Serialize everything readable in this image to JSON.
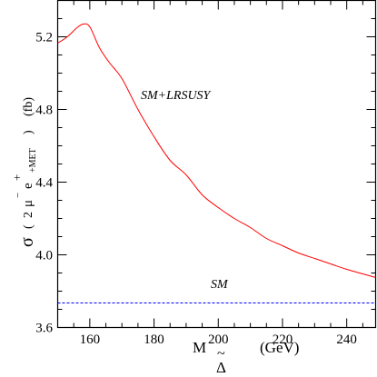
{
  "chart_data": {
    "type": "line",
    "xlim": [
      150,
      249
    ],
    "ylim": [
      3.6,
      5.4
    ],
    "xticks": [
      160,
      180,
      200,
      220,
      240
    ],
    "xtick_labels": [
      "160",
      "180",
      "200",
      "220",
      "240"
    ],
    "yticks": [
      3.6,
      4.0,
      4.4,
      4.8,
      5.2
    ],
    "ytick_labels": [
      "3.6",
      "4.0",
      "4.4",
      "4.8",
      "5.2"
    ],
    "xlabel": {
      "main": "M",
      "tilde": "~",
      "sub": "Δ",
      "unit": "(GeV)"
    },
    "ylabel": {
      "sigma": "σ",
      "open": "(",
      "num": "2",
      "mu": "μ",
      "minus": "−",
      "e": "e",
      "plus": "+",
      "met": "+MET",
      "close": ")",
      "unit": "(fb)"
    },
    "grid": false,
    "series": [
      {
        "name": "SM+LRSUSY",
        "color": "#ff0000",
        "style": "solid",
        "x": [
          150,
          153,
          156,
          158,
          160,
          163,
          166,
          170,
          175,
          180,
          185,
          190,
          195,
          200,
          205,
          210,
          215,
          220,
          225,
          230,
          235,
          240,
          245,
          249
        ],
        "y": [
          5.165,
          5.2,
          5.25,
          5.27,
          5.255,
          5.14,
          5.06,
          4.97,
          4.8,
          4.65,
          4.52,
          4.44,
          4.33,
          4.26,
          4.2,
          4.15,
          4.09,
          4.05,
          4.01,
          3.98,
          3.95,
          3.92,
          3.895,
          3.875
        ]
      },
      {
        "name": "SM",
        "color": "#0000ff",
        "style": "dashed",
        "x": [
          150,
          249
        ],
        "y": [
          3.735,
          3.735
        ]
      }
    ]
  }
}
